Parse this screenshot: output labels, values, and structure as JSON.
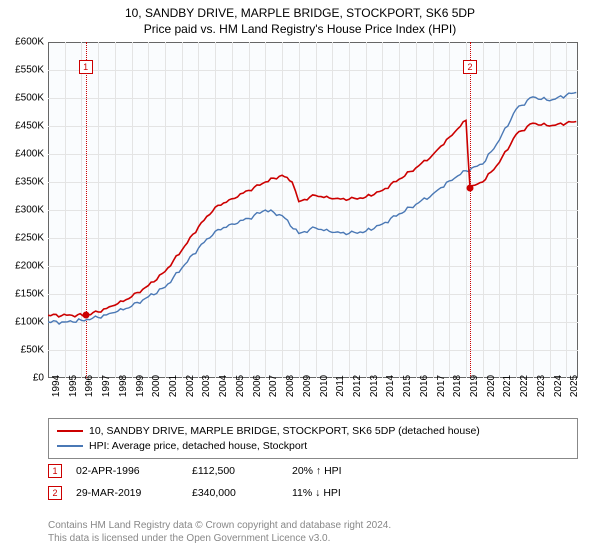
{
  "title": "10, SANDBY DRIVE, MARPLE BRIDGE, STOCKPORT, SK6 5DP",
  "subtitle": "Price paid vs. HM Land Registry's House Price Index (HPI)",
  "chart": {
    "type": "line",
    "background_color": "#fafcfe",
    "border_color": "#666666",
    "grid_color": "#e4e4e4",
    "ylim": [
      0,
      600000
    ],
    "ytick_step": 50000,
    "y_tick_labels": [
      "£0",
      "£50K",
      "£100K",
      "£150K",
      "£200K",
      "£250K",
      "£300K",
      "£350K",
      "£400K",
      "£450K",
      "£500K",
      "£550K",
      "£600K"
    ],
    "x_years": [
      1994,
      1995,
      1996,
      1997,
      1998,
      1999,
      2000,
      2001,
      2002,
      2003,
      2004,
      2005,
      2006,
      2007,
      2008,
      2009,
      2010,
      2011,
      2012,
      2013,
      2014,
      2015,
      2016,
      2017,
      2018,
      2019,
      2020,
      2021,
      2022,
      2023,
      2024,
      2025
    ],
    "x_extent": [
      1994,
      2025.7
    ],
    "series": [
      {
        "name": "price_paid",
        "label": "10, SANDBY DRIVE, MARPLE BRIDGE, STOCKPORT, SK6 5DP (detached house)",
        "color": "#cc0000",
        "line_width": 1.6,
        "data": [
          [
            1994.0,
            112
          ],
          [
            1996.25,
            112
          ],
          [
            1997.0,
            118
          ],
          [
            1998.0,
            130
          ],
          [
            1999.0,
            145
          ],
          [
            2000.0,
            165
          ],
          [
            2001.0,
            190
          ],
          [
            2002.0,
            228
          ],
          [
            2003.0,
            270
          ],
          [
            2004.0,
            305
          ],
          [
            2005.0,
            320
          ],
          [
            2006.0,
            335
          ],
          [
            2007.0,
            350
          ],
          [
            2008.0,
            362
          ],
          [
            2008.6,
            350
          ],
          [
            2009.0,
            315
          ],
          [
            2010.0,
            326
          ],
          [
            2011.0,
            320
          ],
          [
            2012.0,
            319
          ],
          [
            2013.0,
            323
          ],
          [
            2014.0,
            335
          ],
          [
            2015.0,
            355
          ],
          [
            2016.0,
            375
          ],
          [
            2017.0,
            398
          ],
          [
            2018.0,
            430
          ],
          [
            2019.0,
            460
          ],
          [
            2019.24,
            340
          ],
          [
            2020.0,
            350
          ],
          [
            2021.0,
            385
          ],
          [
            2022.0,
            435
          ],
          [
            2023.0,
            455
          ],
          [
            2024.0,
            450
          ],
          [
            2025.0,
            455
          ],
          [
            2025.6,
            458
          ]
        ]
      },
      {
        "name": "hpi",
        "label": "HPI: Average price, detached house, Stockport",
        "color": "#4a78b5",
        "line_width": 1.4,
        "data": [
          [
            1994.0,
            100
          ],
          [
            1995.0,
            100
          ],
          [
            1996.0,
            103
          ],
          [
            1997.0,
            108
          ],
          [
            1998.0,
            117
          ],
          [
            1999.0,
            128
          ],
          [
            2000.0,
            145
          ],
          [
            2001.0,
            162
          ],
          [
            2002.0,
            196
          ],
          [
            2003.0,
            232
          ],
          [
            2004.0,
            262
          ],
          [
            2005.0,
            275
          ],
          [
            2006.0,
            285
          ],
          [
            2007.0,
            300
          ],
          [
            2008.0,
            290
          ],
          [
            2009.0,
            258
          ],
          [
            2010.0,
            268
          ],
          [
            2011.0,
            260
          ],
          [
            2012.0,
            258
          ],
          [
            2013.0,
            262
          ],
          [
            2014.0,
            275
          ],
          [
            2015.0,
            293
          ],
          [
            2016.0,
            310
          ],
          [
            2017.0,
            328
          ],
          [
            2018.0,
            352
          ],
          [
            2019.0,
            370
          ],
          [
            2020.0,
            382
          ],
          [
            2021.0,
            425
          ],
          [
            2022.0,
            480
          ],
          [
            2023.0,
            502
          ],
          [
            2024.0,
            495
          ],
          [
            2025.0,
            505
          ],
          [
            2025.6,
            510
          ]
        ]
      }
    ],
    "marker_color": "#cc0000",
    "markers": [
      {
        "num": "1",
        "x": 1996.25,
        "y": 112500,
        "box_top": 18
      },
      {
        "num": "2",
        "x": 2019.24,
        "y": 340000,
        "box_top": 18
      }
    ]
  },
  "legend": {
    "border_color": "#888888"
  },
  "events": [
    {
      "num": "1",
      "date": "02-APR-1996",
      "price": "£112,500",
      "pct": "20% ↑ HPI"
    },
    {
      "num": "2",
      "date": "29-MAR-2019",
      "price": "£340,000",
      "pct": "11% ↓ HPI"
    }
  ],
  "footer_line1": "Contains HM Land Registry data © Crown copyright and database right 2024.",
  "footer_line2": "This data is licensed under the Open Government Licence v3.0."
}
